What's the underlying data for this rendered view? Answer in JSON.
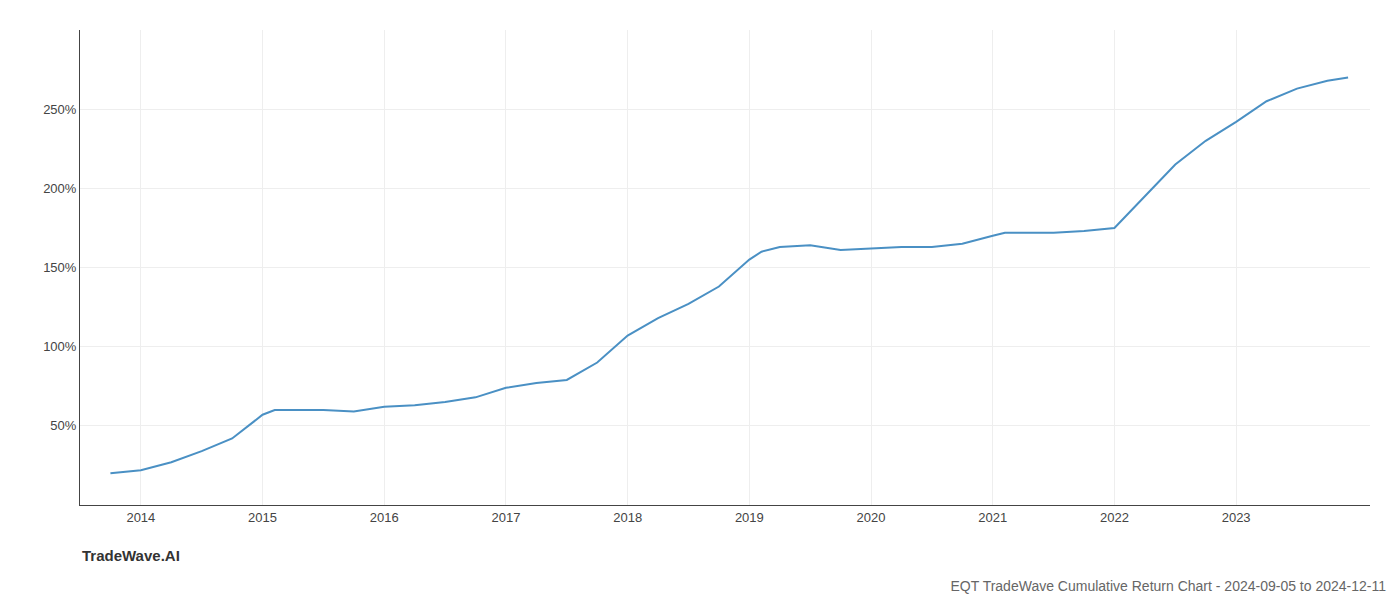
{
  "chart_data": {
    "type": "line",
    "title": "EQT TradeWave Cumulative Return Chart - 2024-09-05 to 2024-12-11",
    "annotations": [
      "TradeWave.AI"
    ],
    "x": [
      2013.75,
      2014.0,
      2014.25,
      2014.5,
      2014.75,
      2015.0,
      2015.1,
      2015.25,
      2015.5,
      2015.75,
      2016.0,
      2016.25,
      2016.5,
      2016.75,
      2017.0,
      2017.25,
      2017.5,
      2017.75,
      2018.0,
      2018.25,
      2018.5,
      2018.75,
      2019.0,
      2019.1,
      2019.25,
      2019.5,
      2019.75,
      2020.0,
      2020.25,
      2020.5,
      2020.75,
      2021.0,
      2021.1,
      2021.25,
      2021.5,
      2021.75,
      2022.0,
      2022.25,
      2022.5,
      2022.75,
      2023.0,
      2023.25,
      2023.5,
      2023.75,
      2023.92
    ],
    "values": [
      20,
      22,
      27,
      34,
      42,
      57,
      60,
      60,
      60,
      59,
      62,
      63,
      65,
      68,
      74,
      77,
      79,
      90,
      107,
      118,
      127,
      138,
      155,
      160,
      163,
      164,
      161,
      162,
      163,
      163,
      165,
      170,
      172,
      172,
      172,
      173,
      175,
      195,
      215,
      230,
      242,
      255,
      263,
      268,
      270
    ],
    "color": "#4a90c4",
    "xlim": [
      2013.5,
      2024.1
    ],
    "ylim": [
      0,
      300
    ],
    "xticks": [
      2014,
      2015,
      2016,
      2017,
      2018,
      2019,
      2020,
      2021,
      2022,
      2023
    ],
    "yticks": [
      {
        "value": 50,
        "label": "50%"
      },
      {
        "value": 100,
        "label": "100%"
      },
      {
        "value": 150,
        "label": "150%"
      },
      {
        "value": 200,
        "label": "200%"
      },
      {
        "value": 250,
        "label": "250%"
      }
    ],
    "grid": true
  }
}
